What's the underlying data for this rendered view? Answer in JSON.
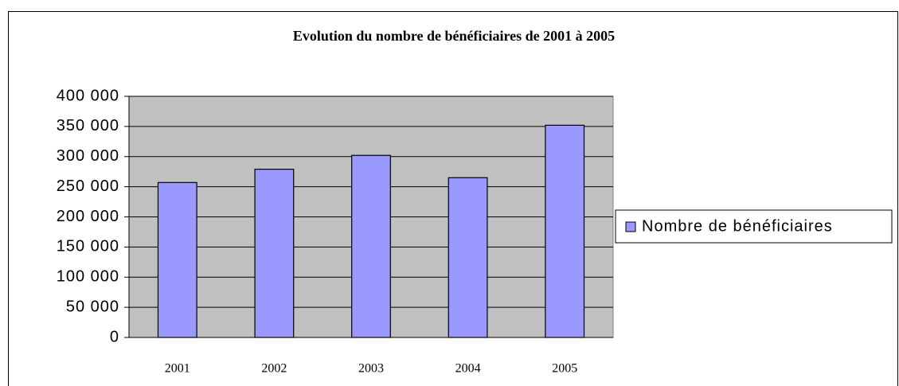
{
  "chart_data": {
    "type": "bar",
    "title": "Evolution du nombre de bénéficiaires de 2001 à 2005",
    "categories": [
      "2001",
      "2002",
      "2003",
      "2004",
      "2005"
    ],
    "series": [
      {
        "name": "Nombre de bénéficiaires",
        "color": "#9999ff",
        "values": [
          257000,
          279000,
          302000,
          265000,
          352000
        ]
      }
    ],
    "ylim": [
      0,
      400000
    ],
    "yticks": [
      0,
      {
        "value": 50000,
        "label": "50 000"
      },
      {
        "value": 100000,
        "label": "100 000"
      },
      {
        "value": 150000,
        "label": "150 000"
      },
      {
        "value": 200000,
        "label": "200 000"
      },
      {
        "value": 250000,
        "label": "250 000"
      },
      {
        "value": 300000,
        "label": "300 000"
      },
      {
        "value": 350000,
        "label": "350 000"
      },
      {
        "value": 400000,
        "label": "400 000"
      }
    ],
    "grid": true,
    "legend": "right",
    "plot_background": "#c0c0c0"
  }
}
